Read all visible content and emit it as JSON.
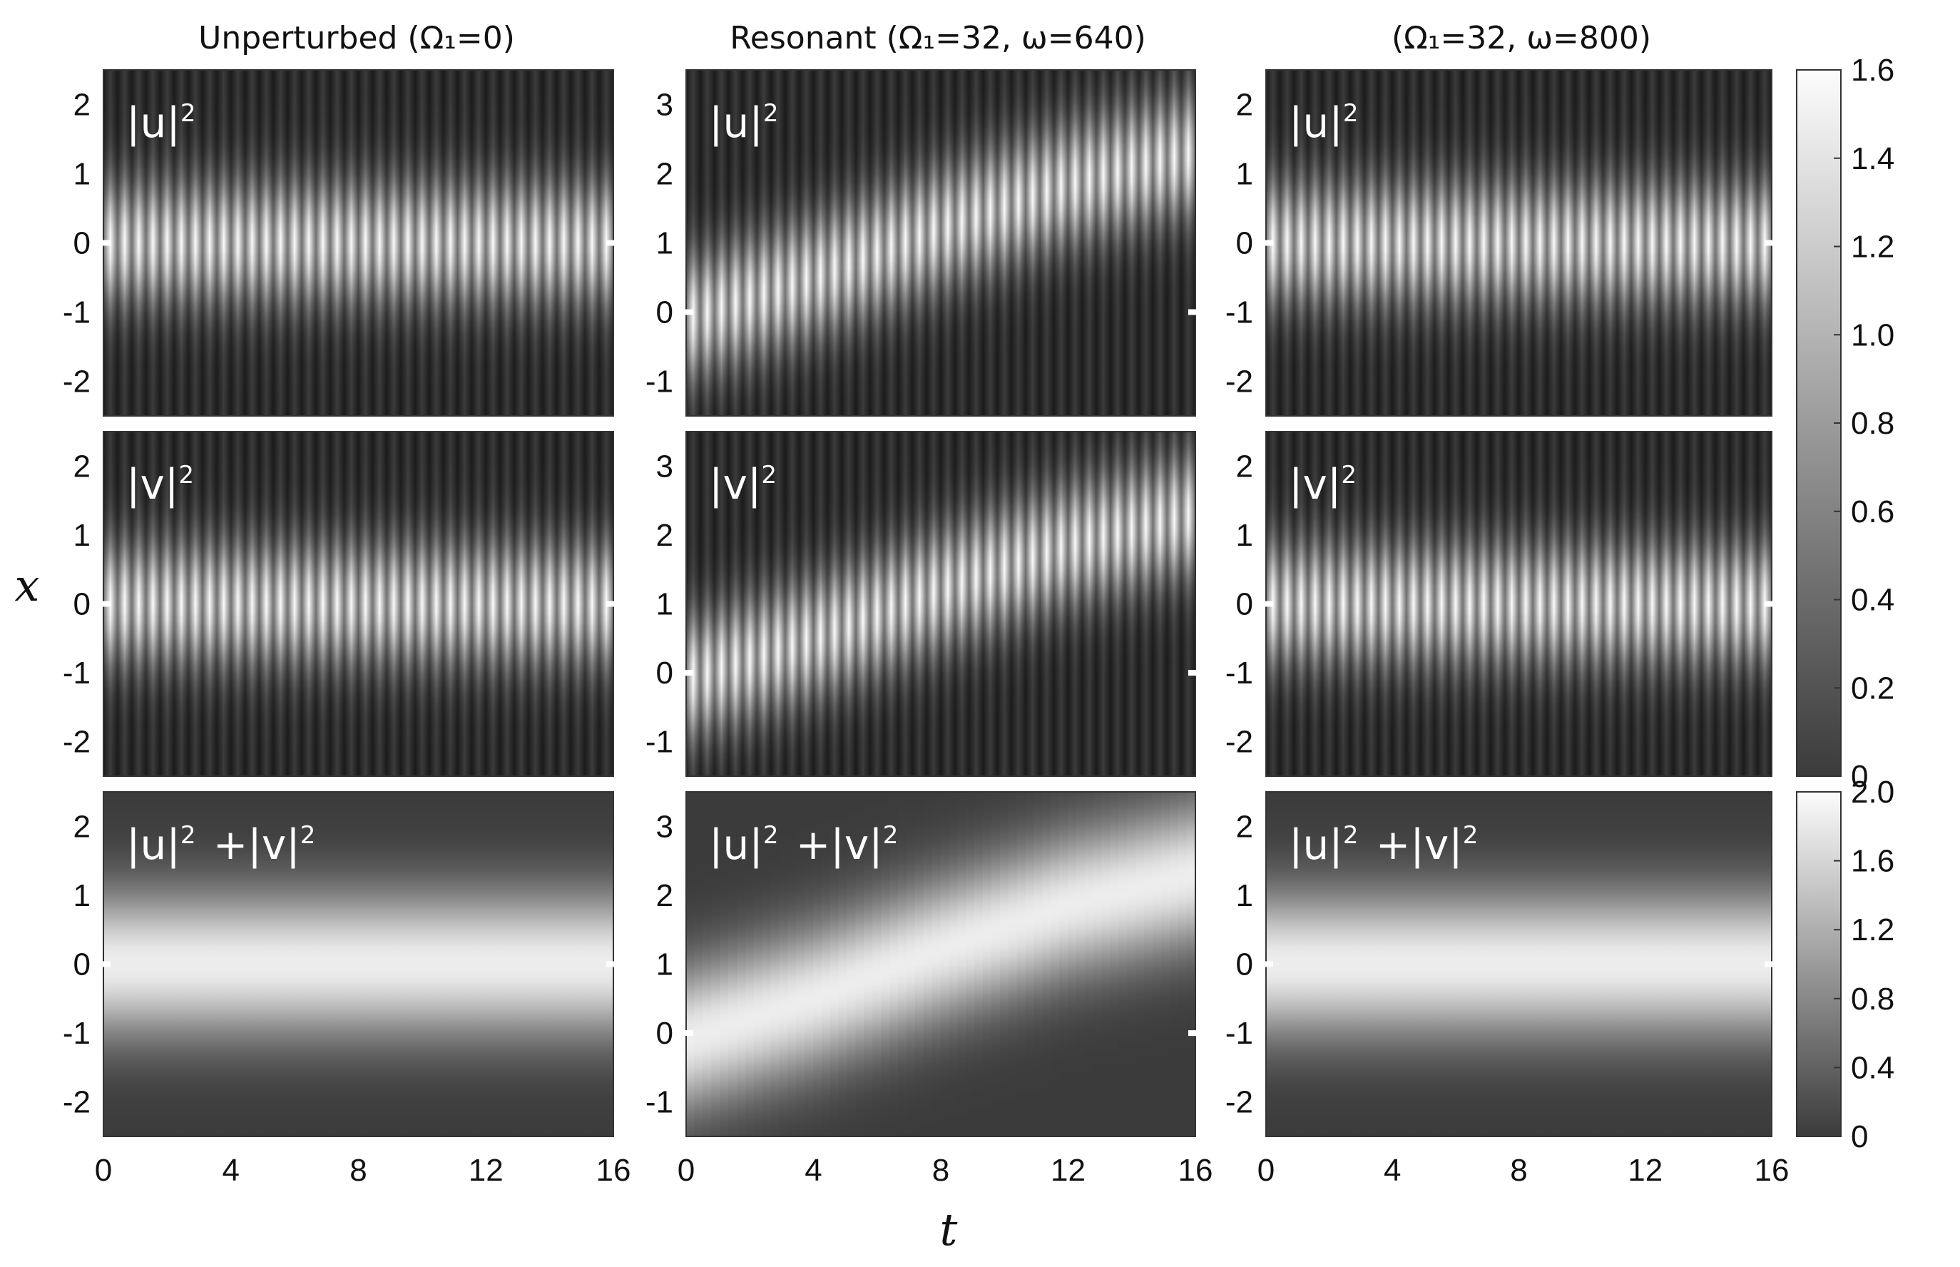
{
  "figure": {
    "column_titles": [
      "Unperturbed (Ω₁=0)",
      "Resonant (Ω₁=32, ω=640)",
      "(Ω₁=32, ω=800)"
    ],
    "row_labels": [
      "|u|²",
      "|v|²",
      "|u|² +|v|²"
    ],
    "xlabel": "t",
    "ylabel": "x"
  },
  "chart_data": {
    "type": "heatmap",
    "colormap": "grayscale (dark gray → white)",
    "x_axis": {
      "label": "t",
      "range": [
        0,
        16
      ],
      "ticks": [
        0,
        4,
        8,
        12,
        16
      ]
    },
    "y_axis": {
      "label": "x"
    },
    "columns": [
      {
        "title": "Unperturbed (Ω₁=0)",
        "omega1": 0,
        "y_range": [
          -2.5,
          2.5
        ],
        "y_ticks": [
          -2,
          -1,
          0,
          1,
          2
        ],
        "soliton_center": {
          "t": [
            0,
            16
          ],
          "x": [
            0,
            0
          ]
        },
        "panels": [
          "|u|²",
          "|v|²",
          "|u|² +|v|²"
        ]
      },
      {
        "title": "Resonant (Ω₁=32, ω=640)",
        "omega1": 32,
        "omega": 640,
        "y_range": [
          -1.5,
          3.5
        ],
        "y_ticks": [
          -1,
          0,
          1,
          2,
          3
        ],
        "soliton_center": {
          "t": [
            0,
            4,
            8,
            12,
            16
          ],
          "x": [
            -0.1,
            0.5,
            1.2,
            1.85,
            2.3
          ]
        },
        "panels": [
          "|u|²",
          "|v|²",
          "|u|² +|v|²"
        ]
      },
      {
        "title": "(Ω₁=32, ω=800)",
        "omega1": 32,
        "omega": 800,
        "y_range": [
          -2.5,
          2.5
        ],
        "y_ticks": [
          -2,
          -1,
          0,
          1,
          2
        ],
        "soliton_center": {
          "t": [
            0,
            16
          ],
          "x": [
            0,
            0
          ]
        },
        "panels": [
          "|u|²",
          "|v|²",
          "|u|² +|v|²"
        ]
      }
    ],
    "colorbars": [
      {
        "for_rows": [
          "|u|²",
          "|v|²"
        ],
        "range": [
          0,
          1.6
        ],
        "ticks": [
          "0",
          "0.2",
          "0.4",
          "0.6",
          "0.8",
          "1.0",
          "1.2",
          "1.4",
          "1.6"
        ]
      },
      {
        "for_rows": [
          "|u|² +|v|²"
        ],
        "range": [
          0,
          2.0
        ],
        "ticks": [
          "0",
          "0.4",
          "0.8",
          "1.2",
          "1.6",
          "2.0"
        ]
      }
    ]
  }
}
